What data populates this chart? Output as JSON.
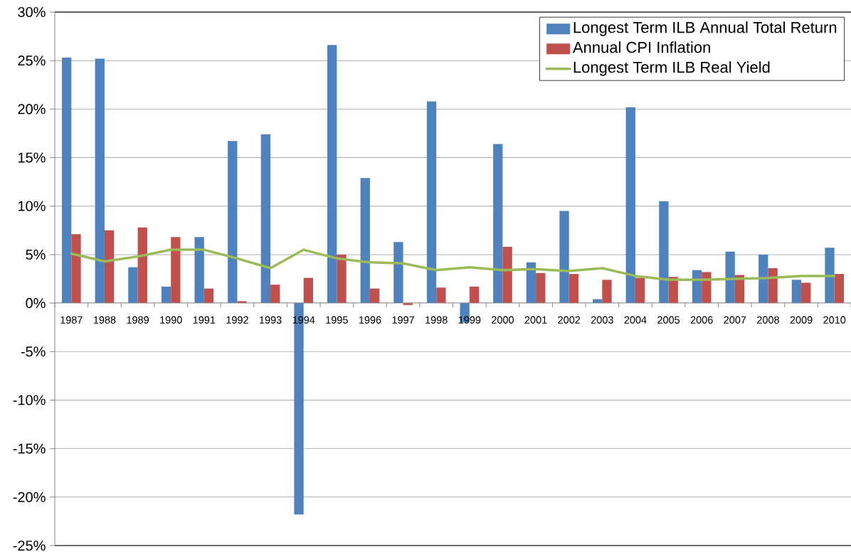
{
  "chart_data": {
    "type": "bar",
    "categories": [
      "1987",
      "1988",
      "1989",
      "1990",
      "1991",
      "1992",
      "1993",
      "1994",
      "1995",
      "1996",
      "1997",
      "1998",
      "1999",
      "2000",
      "2001",
      "2002",
      "2003",
      "2004",
      "2005",
      "2006",
      "2007",
      "2008",
      "2009",
      "2010"
    ],
    "series": [
      {
        "name": "Longest Term ILB Annual Total Return",
        "color": "#4f81bd",
        "values": [
          25.3,
          25.2,
          3.7,
          1.7,
          6.8,
          16.7,
          17.4,
          -21.8,
          26.6,
          12.9,
          6.3,
          20.8,
          -2.0,
          16.4,
          4.2,
          9.5,
          0.4,
          20.2,
          10.5,
          3.4,
          5.3,
          5.0,
          2.4,
          5.7
        ]
      },
      {
        "name": "Annual CPI Inflation",
        "color": "#c0504d",
        "values": [
          7.1,
          7.5,
          7.8,
          6.8,
          1.5,
          0.2,
          1.9,
          2.6,
          5.0,
          1.5,
          -0.2,
          1.6,
          1.7,
          5.8,
          3.1,
          3.0,
          2.4,
          2.6,
          2.7,
          3.2,
          2.9,
          3.6,
          2.1,
          3.0
        ]
      },
      {
        "name": "Longest Term ILB Real Yield",
        "type": "line",
        "color": "#9bbb59",
        "values": [
          5.1,
          4.3,
          4.8,
          5.5,
          5.5,
          4.6,
          3.6,
          5.5,
          4.6,
          4.2,
          4.1,
          3.4,
          3.7,
          3.4,
          3.5,
          3.3,
          3.6,
          2.8,
          2.4,
          2.4,
          2.5,
          2.6,
          2.8,
          2.8
        ]
      }
    ],
    "ylim": [
      -25,
      30
    ],
    "yticks": [
      {
        "value": -25,
        "label": "-25%"
      },
      {
        "value": -20,
        "label": "-20%"
      },
      {
        "value": -15,
        "label": "-15%"
      },
      {
        "value": -10,
        "label": "-10%"
      },
      {
        "value": -5,
        "label": "-5%"
      },
      {
        "value": 0,
        "label": "0%"
      },
      {
        "value": 5,
        "label": "5%"
      },
      {
        "value": 10,
        "label": "10%"
      },
      {
        "value": 15,
        "label": "15%"
      },
      {
        "value": 20,
        "label": "20%"
      },
      {
        "value": 25,
        "label": "25%"
      },
      {
        "value": 30,
        "label": "30%"
      }
    ],
    "grid": "y",
    "legend": "top right"
  }
}
